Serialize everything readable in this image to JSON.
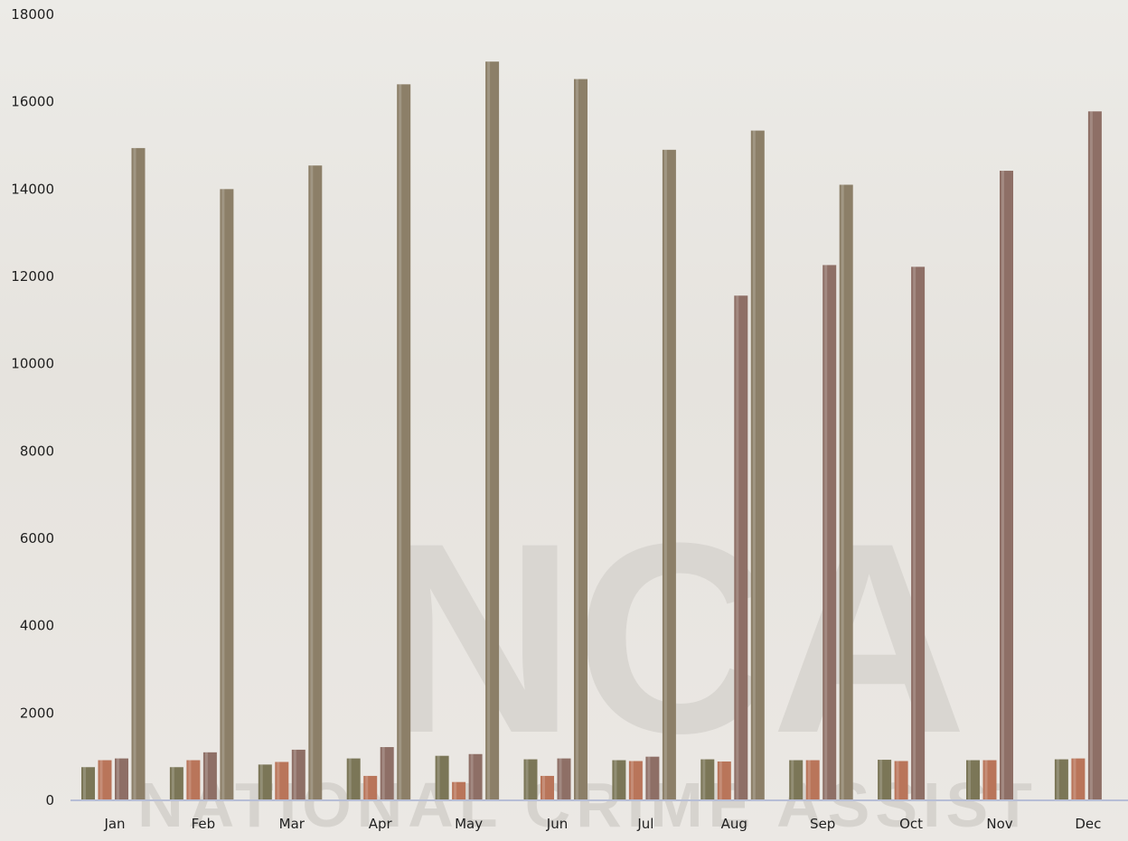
{
  "chart_data": {
    "type": "bar",
    "title": "",
    "xlabel": "",
    "ylabel": "",
    "categories": [
      "Jan",
      "Feb",
      "Mar",
      "Apr",
      "May",
      "Jun",
      "Jul",
      "Aug",
      "Sep",
      "Oct",
      "Nov",
      "Dec"
    ],
    "ylim": [
      0,
      18000
    ],
    "yticks": [
      0,
      2000,
      4000,
      6000,
      8000,
      10000,
      12000,
      14000,
      16000,
      18000
    ],
    "grid": false,
    "legend": "none",
    "series": [
      {
        "color": "#7b7657",
        "values": [
          760,
          760,
          820,
          960,
          1020,
          940,
          920,
          940,
          920,
          930,
          920,
          940
        ]
      },
      {
        "color": "#b9755a",
        "values": [
          920,
          920,
          880,
          560,
          420,
          560,
          900,
          890,
          920,
          900,
          920,
          960
        ]
      },
      {
        "color": "#8e6f66",
        "values": [
          960,
          1100,
          1160,
          1220,
          1060,
          960,
          1000,
          11560,
          12260,
          12220,
          14420,
          15780
        ]
      },
      {
        "color": "#8c7f68",
        "values": [
          14940,
          14000,
          14540,
          16400,
          16920,
          16520,
          14900,
          15340,
          14100,
          null,
          null,
          null
        ]
      }
    ]
  },
  "watermark": {
    "big": "NCA",
    "small": "NATIONAL CRIME ASSIST"
  }
}
